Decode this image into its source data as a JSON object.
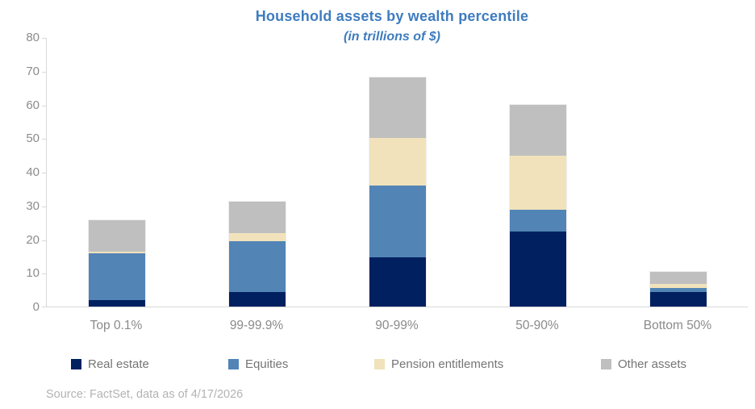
{
  "title": "Household assets by wealth percentile",
  "subtitle": "(in trillions of $)",
  "source": "Source: FactSet, data as of 4/17/2026",
  "colors": {
    "title_blue": "#3e7cbf",
    "axis_line": "#d9d9d9",
    "axis_label_gray": "#8c8c8c",
    "legend_text_gray": "#757575",
    "source_gray": "#b3b3b3"
  },
  "chart_data": {
    "type": "bar",
    "stacked": true,
    "title": "Household assets by wealth percentile",
    "subtitle": "(in trillions of $)",
    "categories": [
      "Top 0.1%",
      "99-99.9%",
      "90-99%",
      "50-90%",
      "Bottom 50%"
    ],
    "series": [
      {
        "name": "Real estate",
        "color": "#002060",
        "values": [
          2.0,
          4.3,
          14.5,
          22.2,
          4.2
        ]
      },
      {
        "name": "Equities",
        "color": "#5284b6",
        "values": [
          13.8,
          15.0,
          21.5,
          6.5,
          1.2
        ]
      },
      {
        "name": "Pension entitlements",
        "color": "#f1e2bb",
        "values": [
          0.6,
          2.5,
          14.0,
          16.2,
          1.3
        ]
      },
      {
        "name": "Other assets",
        "color": "#bfbfbf",
        "values": [
          9.2,
          9.4,
          18.0,
          15.1,
          3.6
        ]
      }
    ],
    "totals": [
      25.6,
      31.2,
      68.0,
      60.0,
      10.3
    ],
    "xlabel": "",
    "ylabel": "",
    "ylim": [
      0,
      80
    ],
    "yticks": [
      0,
      10,
      20,
      30,
      40,
      50,
      60,
      70,
      80
    ],
    "grid": false,
    "legend_position": "bottom"
  }
}
